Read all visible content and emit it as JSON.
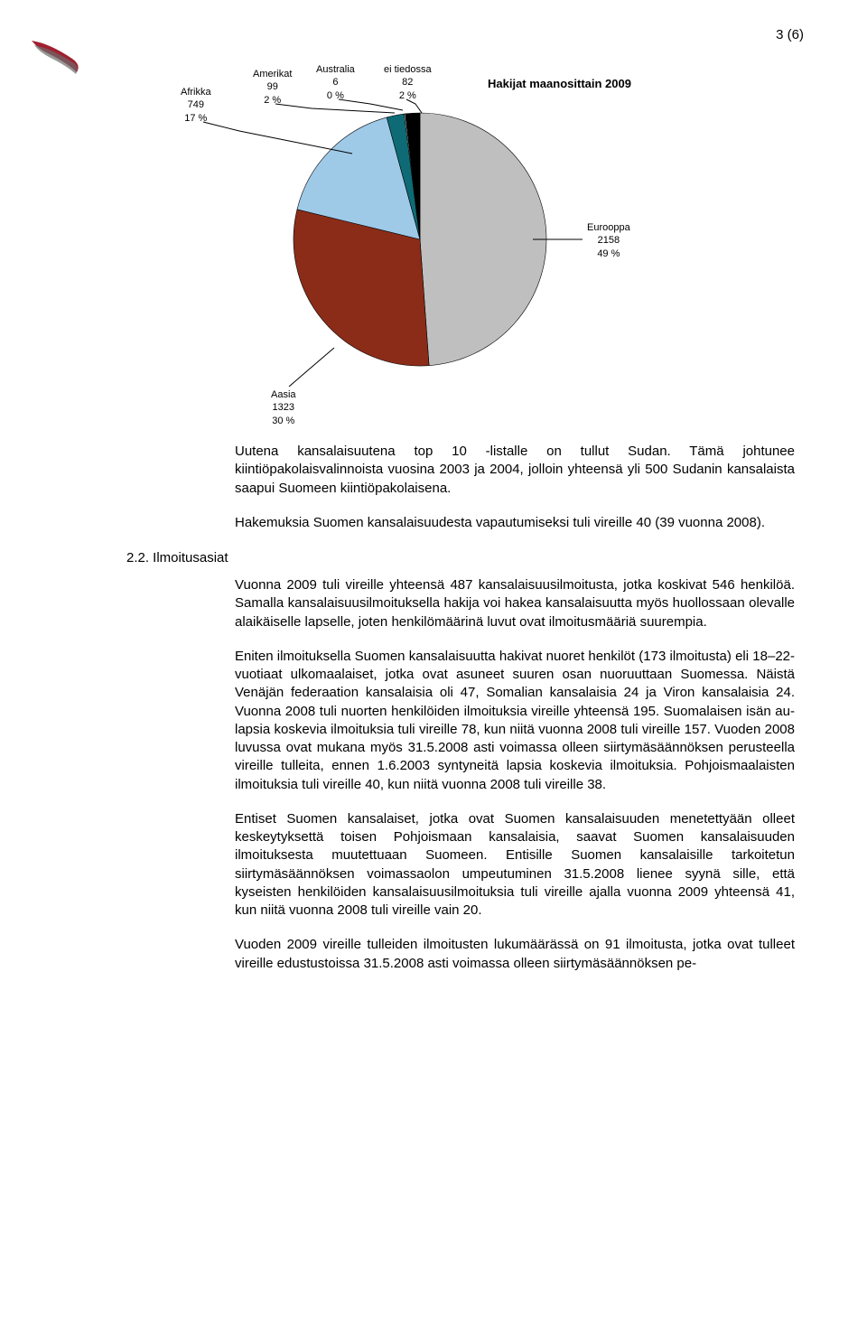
{
  "page_number": "3 (6)",
  "chart": {
    "type": "pie",
    "title": "Hakijat maanosittain 2009",
    "slices": [
      {
        "label": "Eurooppa",
        "value": 2158,
        "pct": "49 %",
        "color": "#bfbfbf"
      },
      {
        "label": "Aasia",
        "value": 1323,
        "pct": "30 %",
        "color": "#8b2c18"
      },
      {
        "label": "Afrikka",
        "value": 749,
        "pct": "17 %",
        "color": "#9ecae8"
      },
      {
        "label": "Amerikat",
        "value": 99,
        "pct": "2 %",
        "color": "#0e6b75"
      },
      {
        "label": "Australia",
        "value": 6,
        "pct": "0 %",
        "color": "#ffffff"
      },
      {
        "label": "ei tiedossa",
        "value": 82,
        "pct": "2 %",
        "color": "#000000"
      }
    ],
    "background_color": "#ffffff",
    "label_fontsize": 11,
    "title_fontsize": 13
  },
  "body": {
    "p1": "Uutena kansalaisuutena top 10 -listalle on tullut Sudan. Tämä johtunee kiintiöpakolaisvalinnoista vuosina 2003 ja 2004, jolloin yhteensä yli 500 Sudanin kansalaista saapui Suomeen kiintiöpakolaisena.",
    "p2": "Hakemuksia Suomen kansalaisuudesta vapautumiseksi tuli vireille 40 (39 vuonna 2008).",
    "heading": "2.2. Ilmoitusasiat",
    "p3": "Vuonna 2009 tuli vireille yhteensä 487 kansalaisuusilmoitusta, jotka koskivat 546 henkilöä. Samalla kansalaisuusilmoituksella hakija voi hakea kansalaisuutta myös huollossaan olevalle alaikäiselle lapselle, joten henkilömäärinä luvut ovat ilmoitusmääriä suurempia.",
    "p4": "Eniten ilmoituksella Suomen kansalaisuutta hakivat nuoret henkilöt (173 ilmoitusta) eli 18–22-vuotiaat ulkomaalaiset, jotka ovat asuneet suuren osan nuoruuttaan Suomessa. Näistä Venäjän federaation kansalaisia oli 47, Somalian kansalaisia 24 ja Viron kansalaisia 24. Vuonna 2008 tuli nuorten henkilöiden ilmoituksia vireille yhteensä 195. Suomalaisen isän au-lapsia koskevia ilmoituksia tuli vireille 78, kun niitä vuonna 2008 tuli vireille 157. Vuoden 2008 luvussa ovat mukana myös 31.5.2008 asti voimassa olleen siirtymäsäännöksen perusteella vireille tulleita, ennen 1.6.2003 syntyneitä lapsia koskevia ilmoituksia. Pohjoismaalaisten ilmoituksia tuli vireille 40, kun niitä vuonna 2008 tuli vireille 38.",
    "p5": "Entiset Suomen kansalaiset, jotka ovat Suomen kansalaisuuden menetettyään olleet keskeytyksettä toisen Pohjoismaan kansalaisia, saavat Suomen kansalaisuuden ilmoituksesta muutettuaan Suomeen. Entisille Suomen kansalaisille tarkoitetun siirtymäsäännöksen voimassaolon umpeutuminen 31.5.2008 lienee syynä sille, että kyseisten henkilöiden kansalaisuusilmoituksia tuli vireille ajalla vuonna 2009 yhteensä 41, kun niitä vuonna 2008 tuli vireille vain 20.",
    "p6": "Vuoden 2009 vireille tulleiden ilmoitusten lukumäärässä on 91 ilmoitusta, jotka ovat tulleet vireille edustustoissa 31.5.2008 asti voimassa olleen siirtymäsäännöksen pe-"
  }
}
